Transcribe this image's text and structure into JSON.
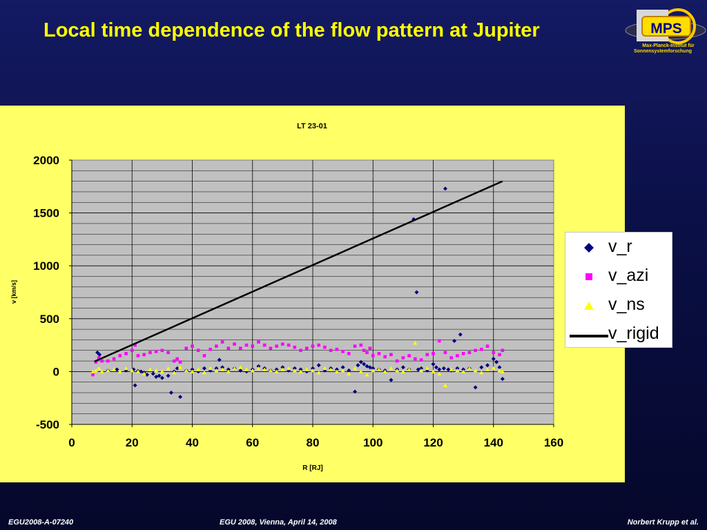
{
  "slide": {
    "title": "Local time dependence of the flow pattern at Jupiter"
  },
  "logo": {
    "text": "MPS",
    "subtitle_line1": "Max-Planck-Institut für",
    "subtitle_line2": "Sonnensystemforschung"
  },
  "footer": {
    "left": "EGU2008-A-07240",
    "center": "EGU 2008, Vienna, April 14, 2008",
    "right": "Norbert Krupp et al."
  },
  "colors": {
    "background": "#0a0f45",
    "title": "#ffff00",
    "panel": "#ffff66",
    "plot_area": "#c0c0c0",
    "v_r": "#000080",
    "v_azi": "#ff00ff",
    "v_ns": "#ffff00",
    "v_rigid": "#000000"
  },
  "chart_data": {
    "type": "scatter",
    "title": "LT 23-01",
    "xlabel": "R [RJ]",
    "ylabel": "v [km/s]",
    "xlim": [
      0,
      160
    ],
    "ylim": [
      -500,
      2000
    ],
    "xticks": [
      "0",
      "20",
      "40",
      "60",
      "80",
      "100",
      "120",
      "140",
      "160"
    ],
    "yticks": [
      "-500",
      "0",
      "500",
      "1000",
      "1500",
      "2000"
    ],
    "grid": "major x, minor y",
    "legend_position": "right",
    "series": [
      {
        "name": "v_r",
        "marker": "diamond",
        "color": "#000080",
        "x": [
          8.5,
          9.2,
          12,
          15,
          18,
          20.5,
          21,
          22,
          23,
          24,
          25,
          27,
          28,
          29,
          30,
          32,
          33,
          34,
          35,
          36,
          38,
          40,
          42,
          44,
          46,
          48,
          49,
          50,
          52,
          54,
          56,
          58,
          60,
          62,
          64,
          66,
          68,
          70,
          72,
          74,
          76,
          78,
          80,
          82,
          84,
          86,
          88,
          90,
          92,
          94,
          95,
          96,
          97,
          98,
          99,
          100,
          102,
          104,
          106,
          108,
          110,
          112,
          113.5,
          114.5,
          115,
          116,
          118,
          120,
          121,
          122,
          123.5,
          124,
          125,
          126,
          127,
          128,
          129,
          130,
          132,
          134,
          136,
          138,
          140,
          141,
          142,
          143
        ],
        "y": [
          180,
          160,
          10,
          20,
          10,
          20,
          -130,
          5,
          0,
          -10,
          -30,
          -20,
          -50,
          -40,
          -60,
          -40,
          -200,
          0,
          30,
          -240,
          10,
          20,
          0,
          30,
          10,
          30,
          110,
          40,
          20,
          30,
          10,
          0,
          20,
          50,
          30,
          10,
          20,
          40,
          10,
          30,
          20,
          0,
          30,
          60,
          10,
          30,
          20,
          40,
          10,
          -190,
          60,
          90,
          70,
          50,
          40,
          30,
          20,
          10,
          -80,
          20,
          40,
          20,
          1440,
          750,
          20,
          30,
          10,
          70,
          40,
          20,
          30,
          1730,
          20,
          10,
          290,
          30,
          350,
          20,
          30,
          -150,
          40,
          60,
          120,
          90,
          40,
          -70
        ]
      },
      {
        "name": "v_azi",
        "marker": "square",
        "color": "#ff00ff",
        "x": [
          7,
          8,
          9,
          10,
          12,
          14,
          16,
          18,
          20,
          21,
          22,
          24,
          26,
          28,
          30,
          32,
          34,
          35,
          36,
          38,
          40,
          42,
          44,
          46,
          48,
          50,
          52,
          54,
          56,
          58,
          60,
          62,
          64,
          66,
          68,
          70,
          72,
          74,
          76,
          78,
          80,
          82,
          84,
          86,
          88,
          90,
          92,
          94,
          96,
          97,
          98,
          99,
          100,
          102,
          104,
          106,
          108,
          110,
          112,
          114,
          116,
          118,
          120,
          122,
          124,
          126,
          128,
          130,
          132,
          134,
          136,
          138,
          140,
          142,
          143
        ],
        "y": [
          -30,
          90,
          130,
          100,
          100,
          120,
          150,
          170,
          200,
          250,
          150,
          160,
          180,
          190,
          200,
          180,
          100,
          120,
          90,
          220,
          240,
          200,
          150,
          210,
          240,
          280,
          220,
          260,
          220,
          250,
          240,
          280,
          250,
          220,
          240,
          260,
          250,
          230,
          200,
          220,
          240,
          250,
          230,
          200,
          210,
          190,
          170,
          240,
          250,
          200,
          180,
          220,
          150,
          170,
          140,
          160,
          100,
          130,
          150,
          120,
          110,
          160,
          170,
          290,
          180,
          130,
          150,
          170,
          180,
          200,
          210,
          240,
          180,
          160,
          200
        ]
      },
      {
        "name": "v_ns",
        "marker": "triangle",
        "color": "#ffff00",
        "x": [
          7,
          8,
          9,
          10,
          12,
          14,
          16,
          18,
          20,
          22,
          24,
          26,
          28,
          30,
          32,
          34,
          36,
          38,
          40,
          42,
          44,
          46,
          48,
          50,
          52,
          54,
          56,
          58,
          60,
          62,
          64,
          66,
          68,
          70,
          72,
          74,
          76,
          78,
          80,
          82,
          84,
          86,
          88,
          90,
          92,
          94,
          96,
          98,
          100,
          102,
          104,
          106,
          108,
          110,
          112,
          114,
          116,
          118,
          120,
          122,
          124,
          126,
          128,
          130,
          132,
          134,
          136,
          138,
          140,
          142,
          143
        ],
        "y": [
          0,
          10,
          30,
          0,
          10,
          20,
          0,
          30,
          10,
          0,
          -20,
          20,
          10,
          0,
          30,
          -10,
          40,
          10,
          0,
          20,
          -10,
          30,
          10,
          20,
          0,
          30,
          40,
          20,
          10,
          30,
          20,
          10,
          0,
          20,
          30,
          10,
          0,
          20,
          10,
          -10,
          30,
          20,
          0,
          10,
          -20,
          30,
          0,
          -30,
          10,
          20,
          0,
          30,
          10,
          0,
          20,
          270,
          10,
          30,
          0,
          -20,
          -130,
          20,
          10,
          0,
          30,
          10,
          -10,
          20,
          30,
          10,
          0
        ]
      },
      {
        "name": "v_rigid",
        "marker": "line",
        "color": "#000000",
        "x": [
          7.5,
          143
        ],
        "y": [
          95,
          1800
        ]
      }
    ]
  }
}
